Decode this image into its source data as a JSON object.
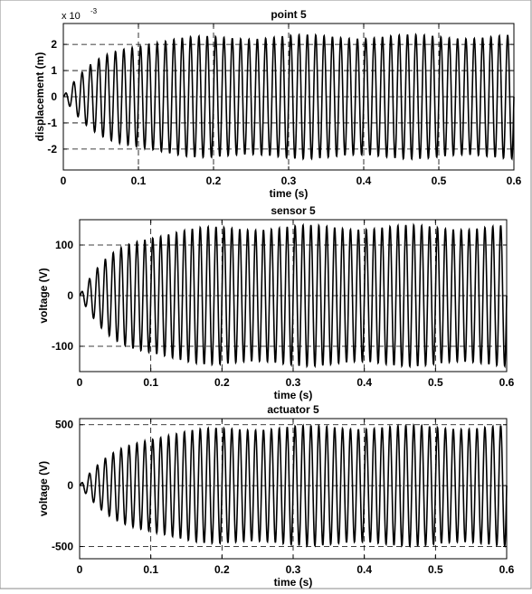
{
  "chart_data": [
    {
      "type": "line",
      "title": "point 5",
      "xlabel": "time (s)",
      "ylabel": "displacement (m)",
      "y_multiplier_label": "x 10",
      "y_multiplier_exponent": "-3",
      "xlim": [
        0,
        0.6
      ],
      "ylim": [
        -2.8,
        2.8
      ],
      "xticks": [
        0,
        0.1,
        0.2,
        0.3,
        0.4,
        0.5,
        0.6
      ],
      "xtick_labels": [
        "0",
        "0.1",
        "0.2",
        "0.3",
        "0.4",
        "0.5",
        "0.6"
      ],
      "yticks": [
        -2,
        -1,
        0,
        1,
        2
      ],
      "ytick_labels": [
        "-2",
        "-1",
        "0",
        "1",
        "2"
      ],
      "grid": true,
      "signal": {
        "frequency_hz": 90,
        "steady_amplitude": 2.3,
        "time_constant_s": 0.05,
        "t_end": 0.6,
        "samples": 1800
      },
      "color": "#000000"
    },
    {
      "type": "line",
      "title": "sensor 5",
      "xlabel": "time (s)",
      "ylabel": "voltage (V)",
      "xlim": [
        0,
        0.6
      ],
      "ylim": [
        -150,
        150
      ],
      "xticks": [
        0,
        0.1,
        0.2,
        0.3,
        0.4,
        0.5,
        0.6
      ],
      "xtick_labels": [
        "0",
        "0.1",
        "0.2",
        "0.3",
        "0.4",
        "0.5",
        "0.6"
      ],
      "yticks": [
        -100,
        0,
        100
      ],
      "ytick_labels": [
        "-100",
        "0",
        "100"
      ],
      "grid": true,
      "signal": {
        "frequency_hz": 90,
        "steady_amplitude": 135,
        "time_constant_s": 0.05,
        "t_end": 0.6,
        "samples": 1800
      },
      "color": "#000000"
    },
    {
      "type": "line",
      "title": "actuator 5",
      "xlabel": "time (s)",
      "ylabel": "voltage (V)",
      "xlim": [
        0,
        0.6
      ],
      "ylim": [
        -600,
        550
      ],
      "xticks": [
        0,
        0.1,
        0.2,
        0.3,
        0.4,
        0.5,
        0.6
      ],
      "xtick_labels": [
        "0",
        "0.1",
        "0.2",
        "0.3",
        "0.4",
        "0.5",
        "0.6"
      ],
      "yticks": [
        -500,
        0,
        500
      ],
      "ytick_labels": [
        "-500",
        "0",
        "500"
      ],
      "grid": true,
      "signal": {
        "frequency_hz": 90,
        "steady_amplitude": 480,
        "time_constant_s": 0.06,
        "t_end": 0.6,
        "samples": 1800
      },
      "color": "#000000"
    }
  ]
}
